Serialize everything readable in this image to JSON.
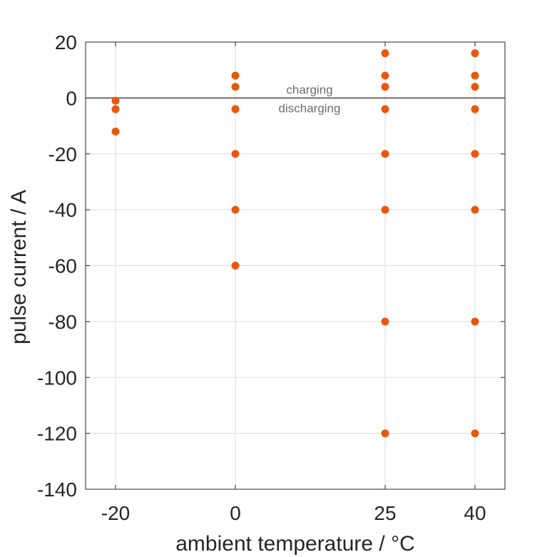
{
  "chart_data": {
    "type": "scatter",
    "xlabel": "ambient temperature / °C",
    "ylabel": "pulse current / A",
    "x_ticks": [
      "-20",
      "0",
      "25",
      "40"
    ],
    "y_ticks": [
      "20",
      "0",
      "-20",
      "-40",
      "-60",
      "-80",
      "-100",
      "-120",
      "-140"
    ],
    "ylim": [
      -140,
      20
    ],
    "xlim": [
      -25,
      45
    ],
    "grid": true,
    "marker_color": "#e8580c",
    "zero_line_color": "#6e6e6e",
    "annotations": {
      "above": "charging",
      "below": "discharging"
    },
    "series": [
      {
        "points": [
          {
            "x": -20,
            "y": -1
          },
          {
            "x": -20,
            "y": -4
          },
          {
            "x": -20,
            "y": -12
          },
          {
            "x": 0,
            "y": 8
          },
          {
            "x": 0,
            "y": 4
          },
          {
            "x": 0,
            "y": -4
          },
          {
            "x": 0,
            "y": -20
          },
          {
            "x": 0,
            "y": -40
          },
          {
            "x": 0,
            "y": -60
          },
          {
            "x": 25,
            "y": 16
          },
          {
            "x": 25,
            "y": 8
          },
          {
            "x": 25,
            "y": 4
          },
          {
            "x": 25,
            "y": -4
          },
          {
            "x": 25,
            "y": -20
          },
          {
            "x": 25,
            "y": -40
          },
          {
            "x": 25,
            "y": -80
          },
          {
            "x": 25,
            "y": -120
          },
          {
            "x": 40,
            "y": 16
          },
          {
            "x": 40,
            "y": 8
          },
          {
            "x": 40,
            "y": 4
          },
          {
            "x": 40,
            "y": -4
          },
          {
            "x": 40,
            "y": -20
          },
          {
            "x": 40,
            "y": -40
          },
          {
            "x": 40,
            "y": -80
          },
          {
            "x": 40,
            "y": -120
          }
        ]
      }
    ]
  }
}
